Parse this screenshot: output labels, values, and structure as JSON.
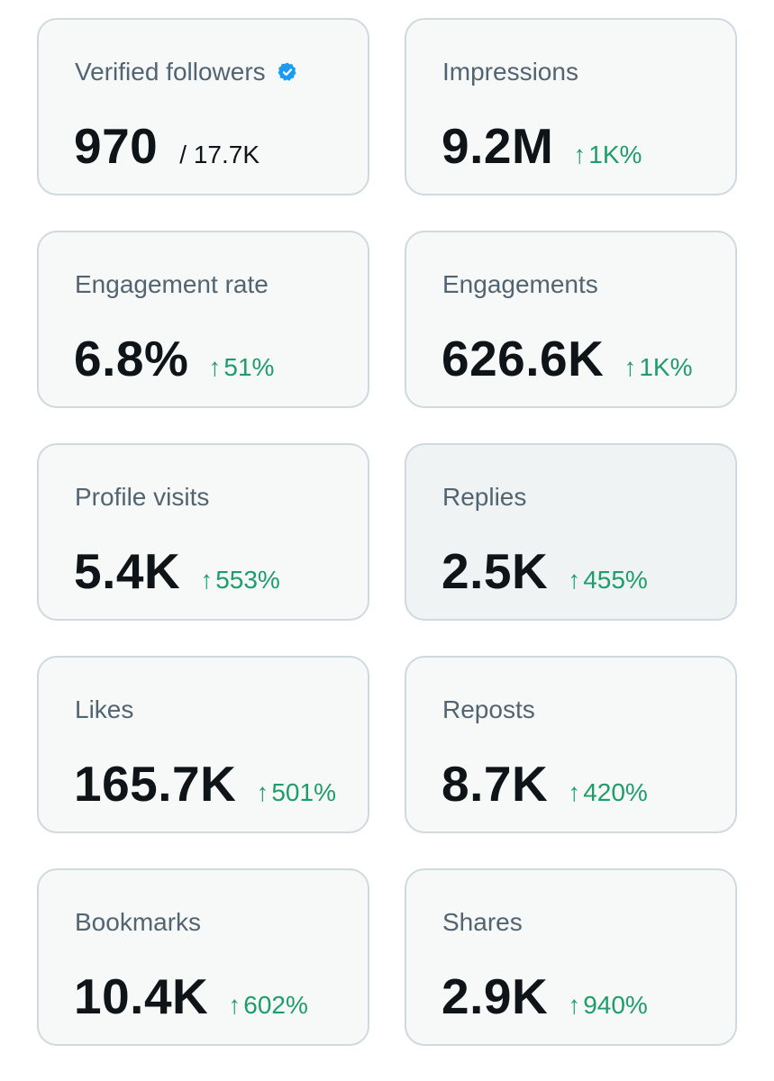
{
  "colors": {
    "card_bg": "#f7f9f9",
    "card_border": "#cfd9de",
    "label": "#536471",
    "value": "#0f1419",
    "positive_change": "#1e9d6b",
    "verified_badge": "#1d9bf0"
  },
  "cards": [
    {
      "label": "Verified followers",
      "icon": "verified-badge-icon",
      "value": "970",
      "total": "/ 17.7K"
    },
    {
      "label": "Impressions",
      "value": "9.2M",
      "change": "1K%",
      "change_icon": "arrow-up-icon"
    },
    {
      "label": "Engagement rate",
      "value": "6.8%",
      "change": "51%",
      "change_icon": "arrow-up-icon"
    },
    {
      "label": "Engagements",
      "value": "626.6K",
      "change": "1K%",
      "change_icon": "arrow-up-icon"
    },
    {
      "label": "Profile visits",
      "value": "5.4K",
      "change": "553%",
      "change_icon": "arrow-up-icon"
    },
    {
      "label": "Replies",
      "value": "2.5K",
      "change": "455%",
      "change_icon": "arrow-up-icon"
    },
    {
      "label": "Likes",
      "value": "165.7K",
      "change": "501%",
      "change_icon": "arrow-up-icon"
    },
    {
      "label": "Reposts",
      "value": "8.7K",
      "change": "420%",
      "change_icon": "arrow-up-icon"
    },
    {
      "label": "Bookmarks",
      "value": "10.4K",
      "change": "602%",
      "change_icon": "arrow-up-icon"
    },
    {
      "label": "Shares",
      "value": "2.9K",
      "change": "940%",
      "change_icon": "arrow-up-icon"
    }
  ]
}
